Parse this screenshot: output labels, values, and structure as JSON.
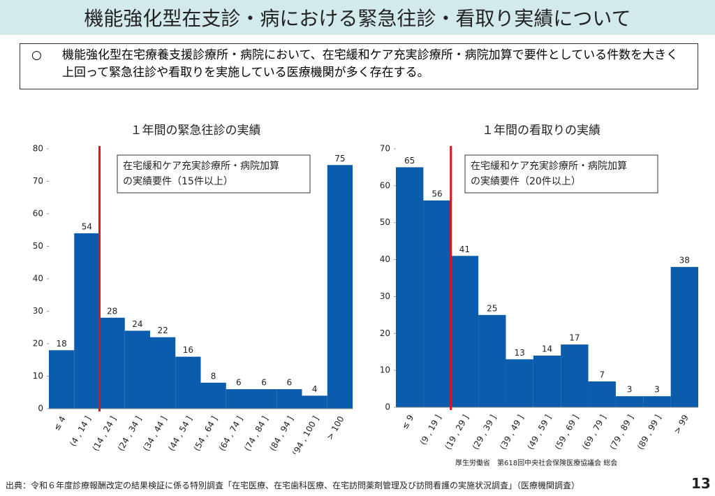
{
  "header": {
    "title": "機能強化型在支診・病における緊急往診・看取り実績について"
  },
  "note": {
    "bullet": "○",
    "text": "機能強化型在宅療養支援診療所・病院において、在宅緩和ケア充実診療所・病院加算で要件としている件数を大きく上回って緊急往診や看取りを実施している医療機関が多く存在する。"
  },
  "chart_data": [
    {
      "type": "bar",
      "title": "１年間の緊急往診の実績",
      "categories": [
        "≤ 4",
        "(4 , 14 ]",
        "(14 , 24 ]",
        "(24 , 34 ]",
        "(34 , 44 ]",
        "(44 , 54 ]",
        "(54 , 64 ]",
        "(64 , 74 ]",
        "(74 , 84 ]",
        "(84 , 94 ]",
        "(94 , 100 ]",
        "> 100"
      ],
      "values": [
        18,
        54,
        28,
        24,
        22,
        16,
        8,
        6,
        6,
        6,
        4,
        75
      ],
      "color": "#0b5cad",
      "ylim": [
        0,
        80
      ],
      "yticks": [
        0,
        10,
        20,
        30,
        40,
        50,
        60,
        70,
        80
      ],
      "annotation": [
        "在宅緩和ケア充実診療所・病院加算",
        "の実績要件（15件以上）"
      ]
    },
    {
      "type": "bar",
      "title": "１年間の看取りの実績",
      "categories": [
        "≤ 9",
        "(9 , 19 ]",
        "(19 , 29 ]",
        "(29 , 39 ]",
        "(39 , 49 ]",
        "(49 , 59 ]",
        "(59 , 69 ]",
        "(69 , 79 ]",
        "(79 , 89 ]",
        "(89 , 99 ]",
        "> 99"
      ],
      "values": [
        65,
        56,
        41,
        25,
        13,
        14,
        17,
        7,
        3,
        3,
        38
      ],
      "color": "#0b5cad",
      "ylim": [
        0,
        70
      ],
      "yticks": [
        0,
        10,
        20,
        30,
        40,
        50,
        60,
        70
      ],
      "annotation": [
        "在宅緩和ケア充実診療所・病院加算",
        "の実績要件（20件以上）"
      ]
    }
  ],
  "source": "厚生労働省　第618回中央社会保険医療協議会 総会",
  "footer": "出典：令和６年度診療報酬改定の結果検証に係る特別調査「在宅医療、在宅歯科医療、在宅訪問薬剤管理及び訪問看護の実施状況調査」（医療機関調査）",
  "page_number": "13"
}
